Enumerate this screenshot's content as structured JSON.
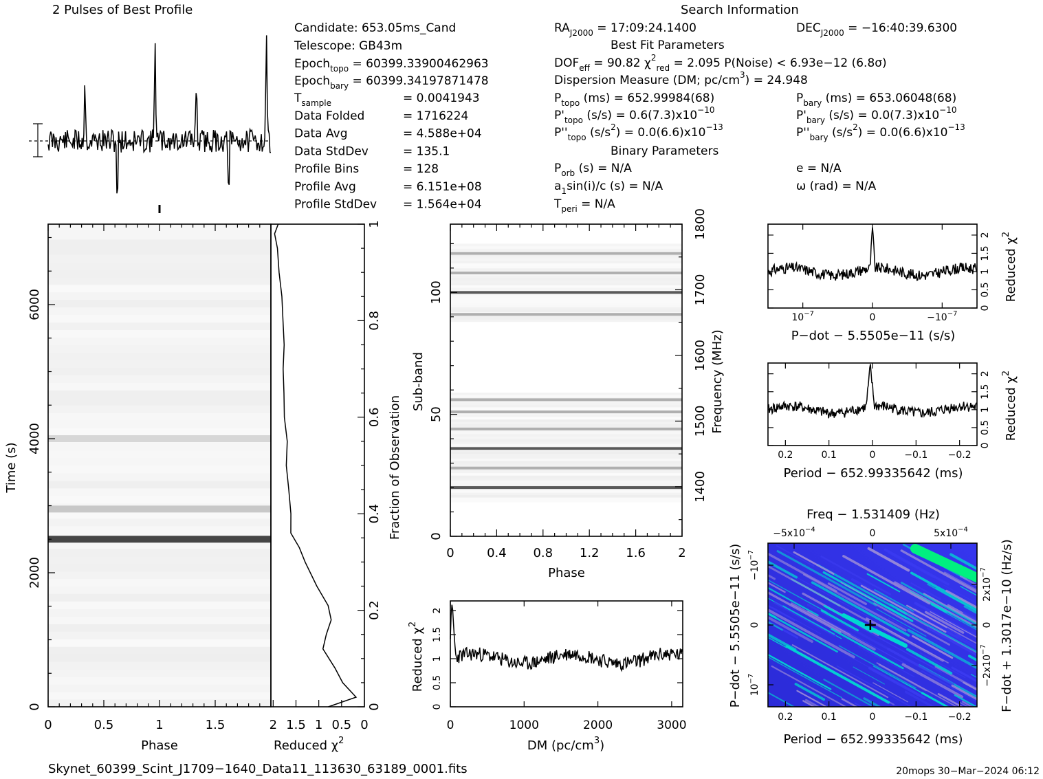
{
  "header": {
    "profile_title": "2 Pulses of Best Profile",
    "search_title": "Search Information",
    "best_fit_title": "Best Fit Parameters",
    "binary_title": "Binary Parameters"
  },
  "info": {
    "candidate": "Candidate:  653.05ms_Cand",
    "telescope": "Telescope:  GB43m",
    "epoch_topo": "Epoch",
    "epoch_topo_sub": "topo",
    "epoch_topo_val": " = 60399.33900462963",
    "epoch_bary": "Epoch",
    "epoch_bary_sub": "bary",
    "epoch_bary_val": " = 60399.34197871478",
    "tsample": "T",
    "tsample_sub": "sample",
    "tsample_val": "=   0.0041943",
    "rows": [
      {
        "label": "Data Folded",
        "value": "=   1716224"
      },
      {
        "label": "Data Avg",
        "value": "=   4.588e+04"
      },
      {
        "label": "Data StdDev",
        "value": "=   135.1"
      },
      {
        "label": "Profile Bins",
        "value": "=   128"
      },
      {
        "label": "Profile Avg",
        "value": "=   6.151e+08"
      },
      {
        "label": "Profile StdDev",
        "value": "=   1.564e+04"
      }
    ],
    "ra_label": "RA",
    "ra_sub": "J2000",
    "ra_val": " = 17:09:24.1400",
    "dec_label": "DEC",
    "dec_sub": "J2000",
    "dec_val": " = −16:40:39.6300",
    "dof": "DOF",
    "dof_sub": "eff",
    "dof_val": " = 90.82  χ",
    "chi_sup": "2",
    "chi_sub": "red",
    "chi_val": " = 2.095  P(Noise) < 6.93e−12  (6.8σ)",
    "dm_line": "Dispersion Measure (DM; pc/cm",
    "dm_sup": "3",
    "dm_val": ") = 24.948",
    "ptopo": "P",
    "ptopo_sub": "topo",
    "ptopo_val": " (ms) =  652.99984(68)",
    "pbary": "P",
    "pbary_sub": "bary",
    "pbary_val": " (ms) =  653.06048(68)",
    "pdtopo": "P'",
    "pdtopo_sub": "topo",
    "pdtopo_val": " (s/s) =  0.6(7.3)x10",
    "pdtopo_exp": "−10",
    "pdbary": "P'",
    "pdbary_sub": "bary",
    "pdbary_val": " (s/s) = 0.0(7.3)x10",
    "pdbary_exp": "−10",
    "pddtopo": "P''",
    "pddtopo_sub": "topo",
    "pddtopo_val": " (s/s",
    "pddtopo_sup": "2",
    "pddtopo_val2": ") = 0.0(6.6)x10",
    "pddtopo_exp": "−13",
    "pddbary": "P''",
    "pddbary_sub": "bary",
    "pddbary_val": " (s/s",
    "pddbary_sup": "2",
    "pddbary_val2": ") = 0.0(6.6)x10",
    "pddbary_exp": "−13",
    "porb": "P",
    "porb_sub": "orb",
    "porb_val": " (s) = N/A",
    "e_val": "e = N/A",
    "asini": "a",
    "asini_sub": "1",
    "asini_val": "sin(i)/c (s) = N/A",
    "omega_val": "ω (rad) = N/A",
    "tperi": "T",
    "tperi_sub": "peri",
    "tperi_val": " = N/A"
  },
  "footer": {
    "filename": "Skynet_60399_Scint_J1709−1640_Data11_113630_63189_0001.fits",
    "stamp": "20mops 30−Mar−2024 06:12"
  },
  "chart_data": [
    {
      "type": "line",
      "name": "profile",
      "title": "2 Pulses of Best Profile",
      "x_range": [
        0,
        2
      ],
      "pulse_phases": [
        0.33,
        0.96,
        1.33,
        1.96
      ],
      "dip_phases": [
        0.62,
        1.62
      ]
    },
    {
      "type": "heatmap",
      "name": "time-phase",
      "xlabel": "Phase",
      "ylabel": "Time (s)",
      "x_ticks": [
        "0",
        "0.5",
        "1",
        "1.5"
      ],
      "x_tick_values": [
        0,
        0.5,
        1,
        1.5
      ],
      "y_ticks": [
        "0",
        "2000",
        "4000",
        "6000"
      ],
      "y_tick_values": [
        0,
        2000,
        4000,
        6000
      ],
      "xlim": [
        0,
        2
      ],
      "ylim": [
        0,
        7200
      ],
      "bright_rows_time": [
        2500,
        2950,
        4000
      ],
      "y2label": "Fraction of Observation",
      "y2_ticks": [
        "0",
        "0.2",
        "0.4",
        "0.6",
        "0.8",
        "1"
      ],
      "y2_tick_values": [
        0,
        0.2,
        0.4,
        0.6,
        0.8,
        1
      ]
    },
    {
      "type": "line",
      "name": "chi-vs-time",
      "xlabel": "Reduced χ",
      "xlabel_sup": "2",
      "x_ticks": [
        "2",
        "1.5",
        "1",
        "0.5",
        "0"
      ],
      "x_tick_values": [
        2,
        1.5,
        1,
        0.5,
        0
      ],
      "xlim": [
        2.05,
        0
      ],
      "fraction": [
        0.0,
        0.02,
        0.05,
        0.08,
        0.12,
        0.15,
        0.18,
        0.21,
        0.25,
        0.3,
        0.33,
        0.36,
        0.4,
        0.45,
        0.5,
        0.55,
        0.6,
        0.65,
        0.7,
        0.75,
        0.8,
        0.85,
        0.9,
        0.95,
        0.98,
        1.0
      ],
      "chi": [
        0.8,
        0.2,
        0.45,
        0.65,
        0.9,
        0.85,
        0.7,
        0.8,
        1.05,
        1.3,
        1.4,
        1.6,
        1.62,
        1.65,
        1.7,
        1.72,
        1.73,
        1.75,
        1.76,
        1.78,
        1.8,
        1.82,
        1.85,
        1.9,
        1.95,
        1.9
      ]
    },
    {
      "type": "heatmap",
      "name": "subband-phase",
      "xlabel": "Phase",
      "ylabel": "Sub-band",
      "y2label": "Frequency (MHz)",
      "x_ticks": [
        "0",
        "0.4",
        "0.8",
        "1.2",
        "1.6",
        "2"
      ],
      "x_tick_values": [
        0,
        0.4,
        0.8,
        1.2,
        1.6,
        2
      ],
      "y_ticks": [
        "0",
        "50",
        "100"
      ],
      "y_tick_values": [
        0,
        50,
        100
      ],
      "y2_ticks": [
        "1400",
        "1500",
        "1600",
        "1700",
        "1800"
      ],
      "y2_tick_values": [
        1400,
        1500,
        1600,
        1700,
        1800
      ],
      "xlim": [
        0,
        2
      ],
      "ylim": [
        0,
        128
      ],
      "bright_subbands": [
        20,
        28,
        36,
        44,
        51,
        56,
        91,
        100,
        108,
        116
      ]
    },
    {
      "type": "line",
      "name": "chi-vs-dm",
      "xlabel": "DM (pc/cm",
      "xlabel_sup": "3",
      "xlabel_end": ")",
      "ylabel": "Reduced χ",
      "ylabel_sup": "2",
      "x_ticks": [
        "0",
        "1000",
        "2000",
        "3000"
      ],
      "x_tick_values": [
        0,
        1000,
        2000,
        3000
      ],
      "y_ticks": [
        "0",
        "0.5",
        "1",
        "1.5",
        "2"
      ],
      "y_tick_values": [
        0,
        0.5,
        1,
        1.5,
        2
      ],
      "xlim": [
        0,
        3150
      ],
      "ylim": [
        0,
        2.2
      ],
      "peak": {
        "x": 25,
        "y": 2.1
      },
      "baseline": 1.0
    },
    {
      "type": "line",
      "name": "chi-vs-pdot",
      "xlabel": "P−dot − 5.5505e−11 (s/s)",
      "ylabel": "Reduced χ",
      "ylabel_sup": "2",
      "x_ticks": [
        "10",
        "0",
        "−10"
      ],
      "x_tick_sups": [
        "−7",
        "",
        "−7"
      ],
      "x_tick_values": [
        1e-07,
        0,
        -1e-07
      ],
      "y_ticks": [
        "0",
        "0.5",
        "1",
        "1.5",
        "2"
      ],
      "y_tick_values": [
        0,
        0.5,
        1,
        1.5,
        2
      ],
      "xlim": [
        1.5e-07,
        -1.5e-07
      ],
      "ylim": [
        0,
        2.3
      ],
      "peak": {
        "x": 0,
        "y": 2.1
      },
      "baseline": 1.0
    },
    {
      "type": "line",
      "name": "chi-vs-period",
      "xlabel": "Period − 652.99335642 (ms)",
      "ylabel": "Reduced χ",
      "ylabel_sup": "2",
      "x_ticks": [
        "0.2",
        "0.1",
        "0",
        "−0.1",
        "−0.2"
      ],
      "x_tick_values": [
        0.2,
        0.1,
        0,
        -0.1,
        -0.2
      ],
      "y_ticks": [
        "0",
        "0.5",
        "1",
        "1.5",
        "2"
      ],
      "y_tick_values": [
        0,
        0.5,
        1,
        1.5,
        2
      ],
      "xlim": [
        0.24,
        -0.24
      ],
      "ylim": [
        0,
        2.3
      ],
      "peak": {
        "x": 0.005,
        "y": 2.1
      },
      "baseline": 1.0
    },
    {
      "type": "heatmap",
      "name": "period-pdot",
      "title": "Freq − 1.531409 (Hz)",
      "xlabel": "Period − 652.99335642 (ms)",
      "ylabel": "P−dot − 5.5505e−11 (s/s)",
      "y2label": "F−dot + 1.3017e−10 (Hz/s)",
      "x_ticks": [
        "0.2",
        "0.1",
        "0",
        "−0.1",
        "−0.2"
      ],
      "x_tick_values": [
        0.2,
        0.1,
        0,
        -0.1,
        -0.2
      ],
      "top_ticks": [
        "−5x10",
        "0",
        "5x10"
      ],
      "top_tick_sups": [
        "−4",
        "",
        "−4"
      ],
      "y_ticks": [
        "10",
        "0",
        "−10"
      ],
      "y_tick_sups": [
        "−7",
        "",
        "−7"
      ],
      "y2_ticks": [
        "−2x10",
        "0",
        "2x10"
      ],
      "y2_tick_sups": [
        "−7",
        "",
        "−7"
      ],
      "best": {
        "x": 0.005,
        "y": 0
      },
      "colors": [
        "#2a2adb",
        "#3a3af0",
        "#00d8d0",
        "#9a8ad8",
        "#00f080"
      ]
    }
  ]
}
